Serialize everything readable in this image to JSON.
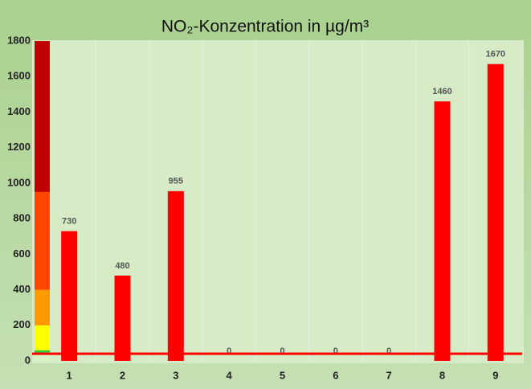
{
  "chart_data": {
    "type": "bar",
    "title": "NO₂-Konzentration in µg/m³",
    "categories": [
      "1",
      "2",
      "3",
      "4",
      "5",
      "6",
      "7",
      "8",
      "9"
    ],
    "values": [
      730,
      480,
      955,
      0,
      0,
      0,
      0,
      1460,
      1670
    ],
    "color": "#ff0000",
    "ylim": [
      0,
      1800
    ],
    "yticks": [
      0,
      200,
      400,
      600,
      800,
      1000,
      1200,
      1400,
      1600,
      1800
    ],
    "grid": false,
    "scale_bounds": [
      0,
      40,
      60,
      200,
      400,
      950,
      1800
    ],
    "scale_colors": [
      "#d9f5c5",
      "#33cc33",
      "#ffff00",
      "#ff9900",
      "#ff4400",
      "#c00000"
    ],
    "reference_line": {
      "value": 40,
      "color": "#ff0000"
    }
  }
}
